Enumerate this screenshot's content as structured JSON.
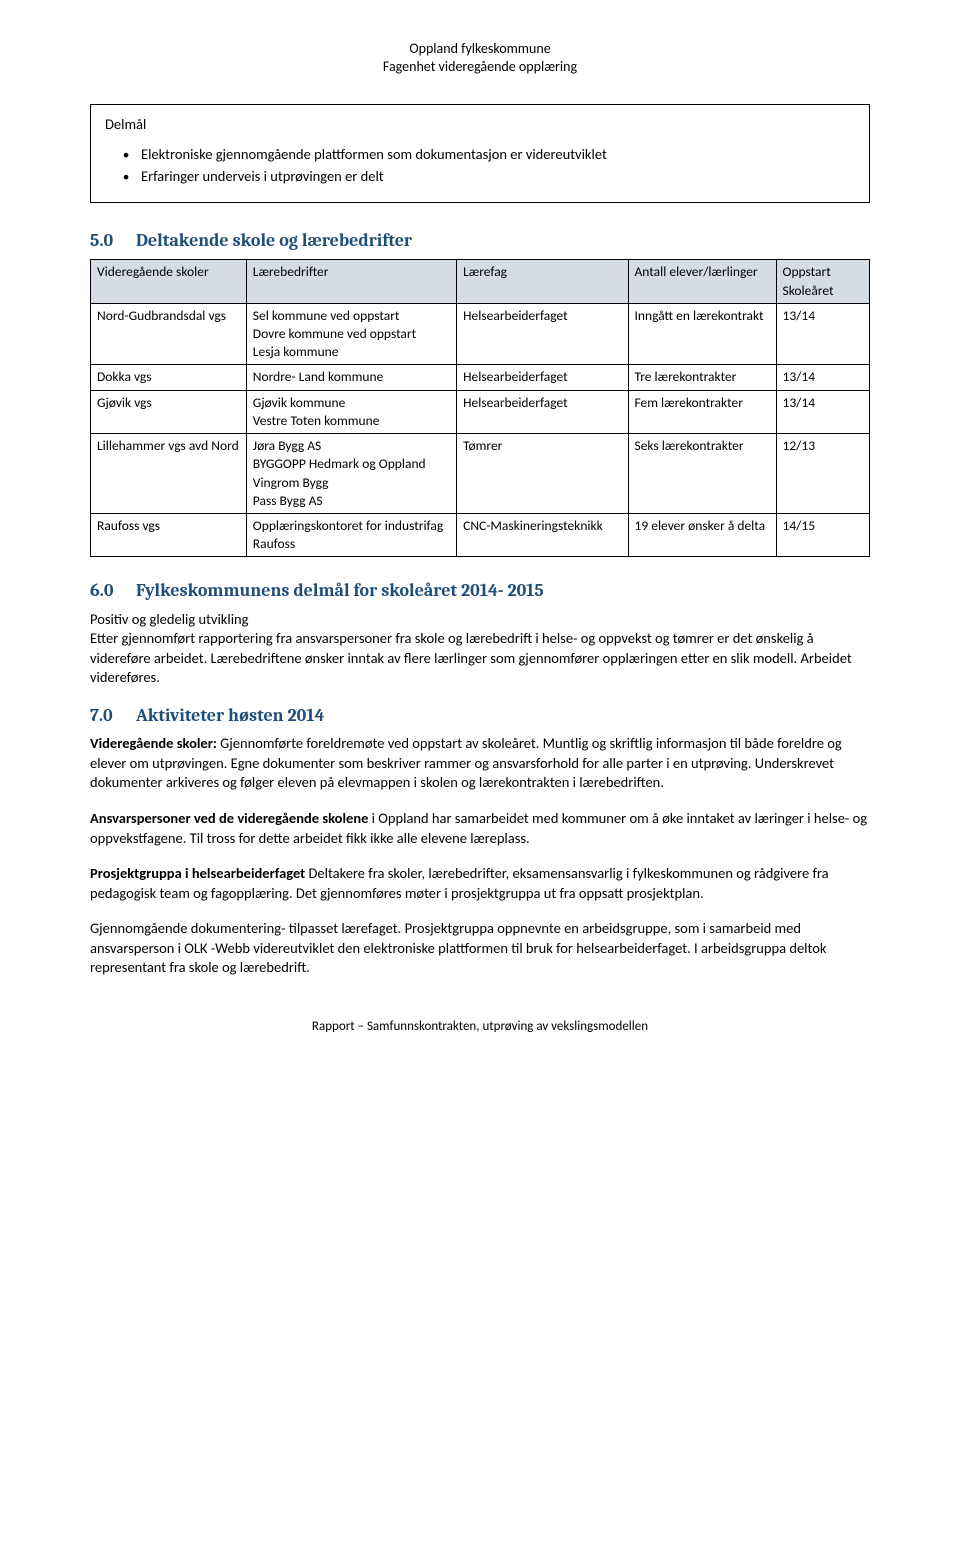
{
  "header": {
    "line1": "Oppland fylkeskommune",
    "line2": "Fagenhet videregående opplæring"
  },
  "delmal": {
    "title": "Delmål",
    "items": [
      "Elektroniske gjennomgående plattformen som dokumentasjon er videreutviklet",
      "Erfaringer underveis i utprøvingen er delt"
    ]
  },
  "section5": {
    "num": "5.0",
    "title": "Deltakende skole og lærebedrifter",
    "columns": [
      "Videregående skoler",
      "Lærebedrifter",
      "Lærefag",
      "Antall elever/lærlinger",
      "Oppstart Skoleåret"
    ],
    "rows": [
      {
        "c0": "Nord-Gudbrandsdal vgs",
        "c1": [
          "Sel kommune ved oppstart",
          "Dovre kommune ved oppstart",
          "Lesja kommune"
        ],
        "c2": "Helsearbeiderfaget",
        "c3": "Inngått en lærekontrakt",
        "c4": "13/14"
      },
      {
        "c0": "Dokka vgs",
        "c1": [
          "Nordre- Land kommune"
        ],
        "c2": "Helsearbeiderfaget",
        "c3": "Tre lærekontrakter",
        "c4": "13/14"
      },
      {
        "c0": "Gjøvik vgs",
        "c1": [
          "Gjøvik kommune",
          "Vestre Toten kommune"
        ],
        "c2": "Helsearbeiderfaget",
        "c3": "Fem lærekontrakter",
        "c4": "13/14"
      },
      {
        "c0": "Lillehammer vgs avd Nord",
        "c1": [
          "Jøra Bygg AS",
          "BYGGOPP Hedmark og Oppland",
          "Vingrom Bygg",
          "Pass Bygg AS"
        ],
        "c2": "Tømrer",
        "c3": "Seks lærekontrakter",
        "c4": "12/13"
      },
      {
        "c0": "Raufoss vgs",
        "c1": [
          "Opplæringskontoret for industrifag Raufoss"
        ],
        "c2": "CNC-Maskineringsteknikk",
        "c3": "19 elever ønsker å delta",
        "c4": "14/15"
      }
    ]
  },
  "section6": {
    "num": "6.0",
    "title": "Fylkeskommunens delmål for skoleåret 2014- 2015",
    "para1": "Positiv og gledelig utvikling",
    "para2": "Etter gjennomført rapportering fra ansvarspersoner fra skole og lærebedrift i helse- og oppvekst og tømrer er det ønskelig å videreføre arbeidet. Lærebedriftene ønsker inntak av flere lærlinger som gjennomfører opplæringen etter en slik modell. Arbeidet videreføres."
  },
  "section7": {
    "num": "7.0",
    "title": "Aktiviteter høsten 2014",
    "p1_lead": "Videregående skoler:",
    "p1_rest": " Gjennomførte foreldremøte ved oppstart av skoleåret. Muntlig og skriftlig informasjon til både foreldre og elever om utprøvingen. Egne dokumenter som beskriver rammer og ansvarsforhold for alle parter i en utprøving. Underskrevet dokumenter arkiveres og følger eleven på elevmappen i skolen og lærekontrakten i lærebedriften.",
    "p2_lead": "Ansvarspersoner ved de videregående skolene",
    "p2_rest": " i Oppland har samarbeidet med kommuner om å øke inntaket av læringer i helse- og oppvekstfagene. Til tross for dette arbeidet fikk ikke alle elevene læreplass.",
    "p3_lead": "Prosjektgruppa i helsearbeiderfaget",
    "p3_rest": " Deltakere fra skoler, lærebedrifter, eksamensansvarlig i fylkeskommunen og rådgivere fra pedagogisk team og fagopplæring. Det gjennomføres møter i prosjektgruppa ut fra oppsatt prosjektplan.",
    "p4": "Gjennomgående dokumentering- tilpasset lærefaget. Prosjektgruppa oppnevnte en arbeidsgruppe, som i samarbeid med ansvarsperson i OLK -Webb videreutviklet den elektroniske plattformen til bruk for helsearbeiderfaget. I arbeidsgruppa deltok representant fra skole og lærebedrift."
  },
  "footer": "Rapport – Samfunnskontrakten, utprøving av vekslingsmodellen"
}
